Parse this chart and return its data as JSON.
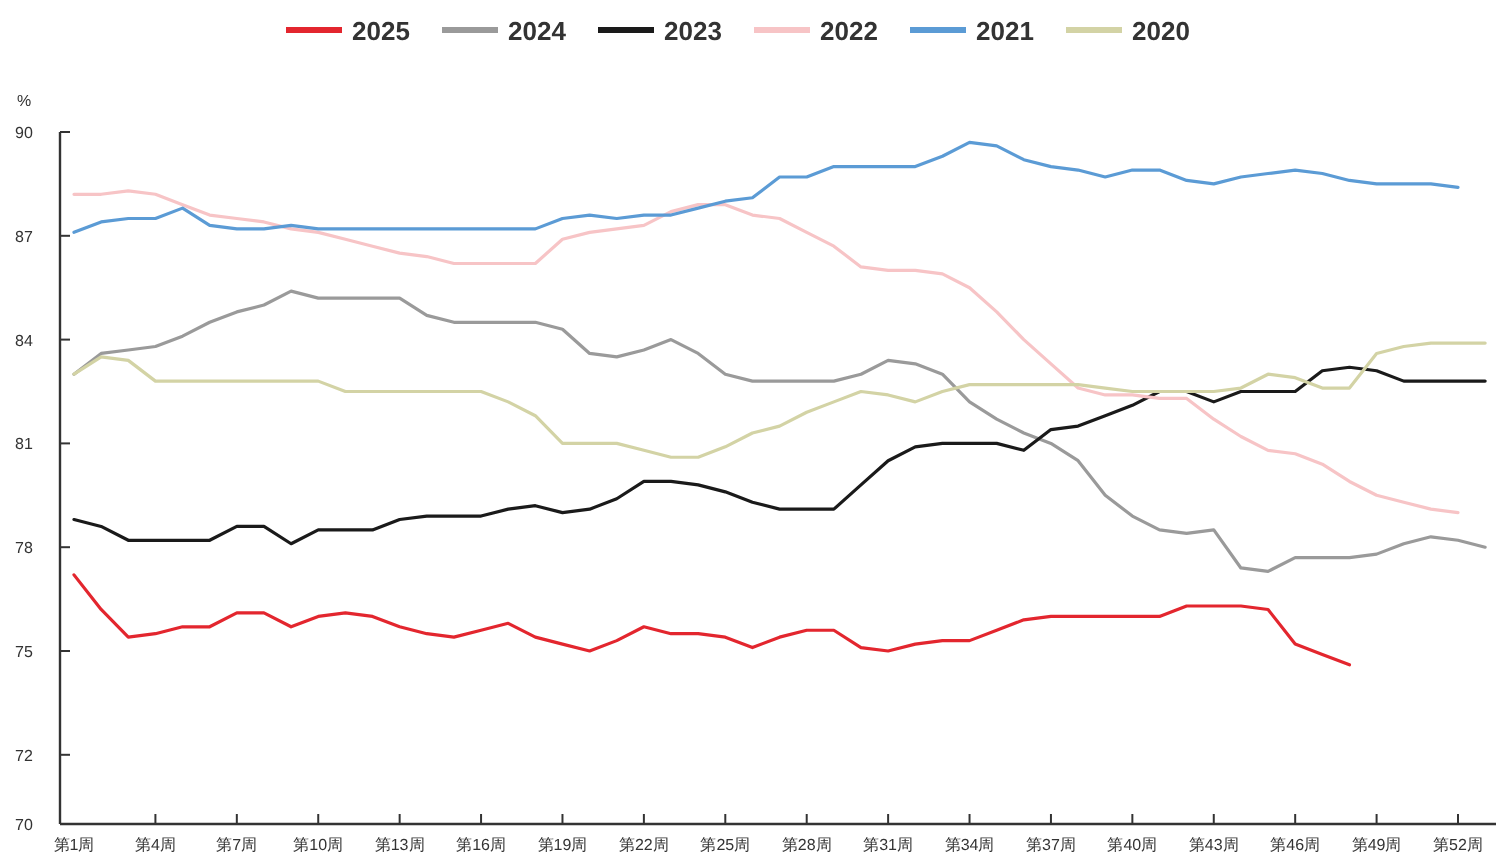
{
  "chart_data": {
    "type": "line",
    "ylabel": "%",
    "legend": "top",
    "grid": false,
    "ylim": [
      70,
      90
    ],
    "yticks": [
      70,
      72,
      75,
      78,
      81,
      84,
      87,
      90
    ],
    "categories": [
      "第1周",
      null,
      null,
      "第4周",
      null,
      null,
      "第7周",
      null,
      null,
      "第10周",
      null,
      null,
      "第13周",
      null,
      null,
      "第16周",
      null,
      null,
      "第19周",
      null,
      null,
      "第22周",
      null,
      null,
      "第25周",
      null,
      null,
      "第28周",
      null,
      null,
      "第31周",
      null,
      null,
      "第34周",
      null,
      null,
      "第37周",
      null,
      null,
      "第40周",
      null,
      null,
      "第43周",
      null,
      null,
      "第46周",
      null,
      null,
      "第49周",
      null,
      null,
      "第52周",
      null
    ],
    "series": [
      {
        "name": "2025",
        "color": "#e3262e",
        "values": [
          77.2,
          76.2,
          75.4,
          75.5,
          75.7,
          75.7,
          76.1,
          76.1,
          75.7,
          76.0,
          76.1,
          76.0,
          75.7,
          75.5,
          75.4,
          75.6,
          75.8,
          75.4,
          75.2,
          75.0,
          75.3,
          75.7,
          75.5,
          75.5,
          75.4,
          75.1,
          75.4,
          75.6,
          75.6,
          75.1,
          75.0,
          75.2,
          75.3,
          75.3,
          75.6,
          75.9,
          76.0,
          76.0,
          76.0,
          76.0,
          76.0,
          76.3,
          76.3,
          76.3,
          76.2,
          75.2,
          74.9,
          74.6,
          null,
          null,
          null,
          null,
          null
        ]
      },
      {
        "name": "2024",
        "color": "#9a9a9a",
        "values": [
          83.0,
          83.6,
          83.7,
          83.8,
          84.1,
          84.5,
          84.8,
          85.0,
          85.4,
          85.2,
          85.2,
          85.2,
          85.2,
          84.7,
          84.5,
          84.5,
          84.5,
          84.5,
          84.3,
          83.6,
          83.5,
          83.7,
          84.0,
          83.6,
          83.0,
          82.8,
          82.8,
          82.8,
          82.8,
          83.0,
          83.4,
          83.3,
          83.0,
          82.2,
          81.7,
          81.3,
          81.0,
          80.5,
          79.5,
          78.9,
          78.5,
          78.4,
          78.5,
          77.4,
          77.3,
          77.7,
          77.7,
          77.7,
          77.8,
          78.1,
          78.3,
          78.2,
          78.0
        ]
      },
      {
        "name": "2023",
        "color": "#1a1a1a",
        "values": [
          78.8,
          78.6,
          78.2,
          78.2,
          78.2,
          78.2,
          78.6,
          78.6,
          78.1,
          78.5,
          78.5,
          78.5,
          78.8,
          78.9,
          78.9,
          78.9,
          79.1,
          79.2,
          79.0,
          79.1,
          79.4,
          79.9,
          79.9,
          79.8,
          79.6,
          79.3,
          79.1,
          79.1,
          79.1,
          79.8,
          80.5,
          80.9,
          81.0,
          81.0,
          81.0,
          80.8,
          81.4,
          81.5,
          81.8,
          82.1,
          82.5,
          82.5,
          82.2,
          82.5,
          82.5,
          82.5,
          83.1,
          83.2,
          83.1,
          82.8,
          82.8,
          82.8,
          82.8
        ]
      },
      {
        "name": "2022",
        "color": "#f7c4c6",
        "values": [
          88.2,
          88.2,
          88.3,
          88.2,
          87.9,
          87.6,
          87.5,
          87.4,
          87.2,
          87.1,
          86.9,
          86.7,
          86.5,
          86.4,
          86.2,
          86.2,
          86.2,
          86.2,
          86.9,
          87.1,
          87.2,
          87.3,
          87.7,
          87.9,
          87.9,
          87.6,
          87.5,
          87.1,
          86.7,
          86.1,
          86.0,
          86.0,
          85.9,
          85.5,
          84.8,
          84.0,
          83.3,
          82.6,
          82.4,
          82.4,
          82.3,
          82.3,
          81.7,
          81.2,
          80.8,
          80.7,
          80.4,
          79.9,
          79.5,
          79.3,
          79.1,
          79.0,
          null
        ]
      },
      {
        "name": "2021",
        "color": "#5b9bd5",
        "values": [
          87.1,
          87.4,
          87.5,
          87.5,
          87.8,
          87.3,
          87.2,
          87.2,
          87.3,
          87.2,
          87.2,
          87.2,
          87.2,
          87.2,
          87.2,
          87.2,
          87.2,
          87.2,
          87.5,
          87.6,
          87.5,
          87.6,
          87.6,
          87.8,
          88.0,
          88.1,
          88.7,
          88.7,
          89.0,
          89.0,
          89.0,
          89.0,
          89.3,
          89.7,
          89.6,
          89.2,
          89.0,
          88.9,
          88.7,
          88.9,
          88.9,
          88.6,
          88.5,
          88.7,
          88.8,
          88.9,
          88.8,
          88.6,
          88.5,
          88.5,
          88.5,
          88.4,
          null
        ]
      },
      {
        "name": "2020",
        "color": "#d3d3a5",
        "values": [
          83.0,
          83.5,
          83.4,
          82.8,
          82.8,
          82.8,
          82.8,
          82.8,
          82.8,
          82.8,
          82.5,
          82.5,
          82.5,
          82.5,
          82.5,
          82.5,
          82.2,
          81.8,
          81.0,
          81.0,
          81.0,
          80.8,
          80.6,
          80.6,
          80.9,
          81.3,
          81.5,
          81.9,
          82.2,
          82.5,
          82.4,
          82.2,
          82.5,
          82.7,
          82.7,
          82.7,
          82.7,
          82.7,
          82.6,
          82.5,
          82.5,
          82.5,
          82.5,
          82.6,
          83.0,
          82.9,
          82.6,
          82.6,
          83.6,
          83.8,
          83.9,
          83.9,
          83.9
        ]
      }
    ]
  }
}
